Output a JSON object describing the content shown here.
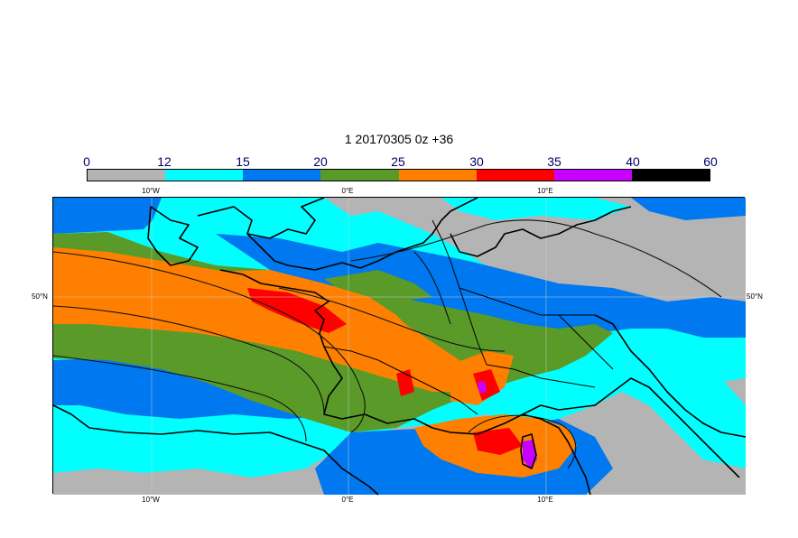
{
  "title": "1 20170305 0z +36",
  "colorbar": {
    "ticks": [
      "0",
      "12",
      "15",
      "20",
      "25",
      "30",
      "35",
      "40",
      "60"
    ],
    "colors": [
      "#b4b4b4",
      "#00ffff",
      "#0078f0",
      "#5a9a28",
      "#ff8000",
      "#ff0000",
      "#c800ff",
      "#000000"
    ]
  },
  "lon_labels": {
    "top": [
      "10°W",
      "0°E",
      "10°E"
    ],
    "bottom": [
      "10°W",
      "0°E",
      "10°E"
    ]
  },
  "lat_labels": {
    "left": "50°N",
    "right": "50°N"
  }
}
